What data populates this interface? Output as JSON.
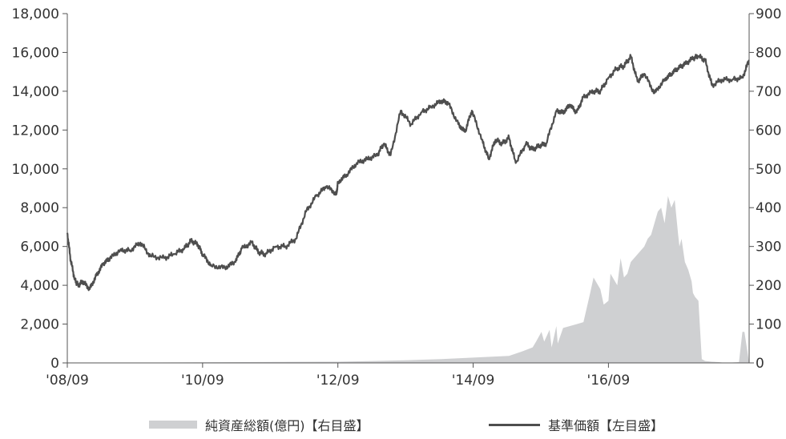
{
  "chart_data": {
    "type": "line",
    "x_ticks": [
      "'08/09",
      "'10/09",
      "'12/09",
      "'14/09",
      "'16/09"
    ],
    "y_left": {
      "ticks": [
        "0",
        "2,000",
        "4,000",
        "6,000",
        "8,000",
        "10,000",
        "12,000",
        "14,000",
        "16,000",
        "18,000"
      ],
      "lim": [
        0,
        18000
      ]
    },
    "y_right": {
      "ticks": [
        "0",
        "100",
        "200",
        "300",
        "400",
        "500",
        "600",
        "700",
        "800",
        "900"
      ],
      "lim": [
        0,
        900
      ]
    },
    "x_range": [
      2008.67,
      2018.75
    ],
    "series": [
      {
        "name": "基準価額【左目盛】",
        "axis": "left",
        "kind": "line",
        "color": "#4e4e4e",
        "x": [
          2008.67,
          2008.72,
          2008.78,
          2008.83,
          2008.9,
          2009.0,
          2009.1,
          2009.2,
          2009.3,
          2009.45,
          2009.6,
          2009.75,
          2009.9,
          2010.1,
          2010.25,
          2010.4,
          2010.5,
          2010.6,
          2010.67,
          2010.8,
          2011.0,
          2011.15,
          2011.25,
          2011.4,
          2011.5,
          2011.6,
          2011.75,
          2011.9,
          2012.05,
          2012.2,
          2012.35,
          2012.5,
          2012.65,
          2012.67,
          2012.8,
          2012.95,
          2013.1,
          2013.25,
          2013.35,
          2013.45,
          2013.6,
          2013.75,
          2013.9,
          2014.05,
          2014.2,
          2014.3,
          2014.45,
          2014.55,
          2014.65,
          2014.8,
          2014.9,
          2015.0,
          2015.1,
          2015.2,
          2015.3,
          2015.45,
          2015.55,
          2015.65,
          2015.75,
          2015.9,
          2016.0,
          2016.1,
          2016.2,
          2016.3,
          2016.45,
          2016.55,
          2016.67,
          2016.8,
          2016.9,
          2017.0,
          2017.1,
          2017.2,
          2017.35,
          2017.5,
          2017.6,
          2017.7,
          2017.8,
          2017.92,
          2018.0,
          2018.1,
          2018.2,
          2018.35,
          2018.5,
          2018.65,
          2018.75
        ],
        "y": [
          6700,
          5300,
          4300,
          4000,
          4200,
          3800,
          4500,
          5100,
          5400,
          5800,
          5800,
          6200,
          5500,
          5400,
          5600,
          5900,
          6300,
          6100,
          5600,
          5000,
          4900,
          5200,
          5900,
          6200,
          5700,
          5600,
          6000,
          6000,
          6400,
          7800,
          8600,
          9100,
          8700,
          9300,
          9700,
          10300,
          10500,
          10700,
          11300,
          10700,
          13000,
          12300,
          12900,
          13200,
          13500,
          13400,
          12300,
          11900,
          13000,
          11500,
          10500,
          11500,
          11300,
          11600,
          10300,
          11300,
          11000,
          11200,
          11300,
          13000,
          12900,
          13300,
          12900,
          13700,
          14000,
          14000,
          14700,
          15200,
          15300,
          15800,
          14500,
          14900,
          13900,
          14600,
          14900,
          15200,
          15400,
          15700,
          15800,
          15600,
          14300,
          14600,
          14600,
          14700,
          15600
        ]
      },
      {
        "name": "純資産総額(億円)【右目盛】",
        "axis": "right",
        "kind": "area",
        "color": "#cfd0d2",
        "x": [
          2008.67,
          2010.0,
          2012.67,
          2013.2,
          2013.7,
          2014.2,
          2014.7,
          2015.2,
          2015.4,
          2015.55,
          2015.6,
          2015.68,
          2015.72,
          2015.8,
          2015.83,
          2015.9,
          2015.92,
          2016.0,
          2016.1,
          2016.2,
          2016.3,
          2016.4,
          2016.45,
          2016.55,
          2016.6,
          2016.67,
          2016.7,
          2016.8,
          2016.85,
          2016.9,
          2016.95,
          2017.0,
          2017.1,
          2017.2,
          2017.25,
          2017.3,
          2017.35,
          2017.4,
          2017.45,
          2017.5,
          2017.55,
          2017.6,
          2017.65,
          2017.7,
          2017.72,
          2017.75,
          2017.8,
          2017.85,
          2017.9,
          2017.92,
          2017.95,
          2018.0,
          2018.05,
          2018.1,
          2018.2,
          2018.3,
          2018.35,
          2018.4,
          2018.5,
          2018.6,
          2018.65,
          2018.68,
          2018.75
        ],
        "y": [
          1,
          1,
          3,
          5,
          7,
          10,
          14,
          18,
          30,
          40,
          55,
          80,
          55,
          85,
          40,
          95,
          50,
          90,
          95,
          100,
          105,
          180,
          220,
          190,
          150,
          160,
          230,
          200,
          270,
          220,
          230,
          260,
          280,
          300,
          320,
          330,
          360,
          390,
          400,
          360,
          430,
          400,
          420,
          330,
          300,
          320,
          260,
          240,
          210,
          180,
          170,
          160,
          10,
          5,
          3,
          2,
          1,
          1,
          1,
          2,
          80,
          80,
          0
        ]
      }
    ]
  },
  "legend": {
    "bar_label": "純資産総額(億円)【右目盛】",
    "line_label": "基準価額【左目盛】"
  }
}
